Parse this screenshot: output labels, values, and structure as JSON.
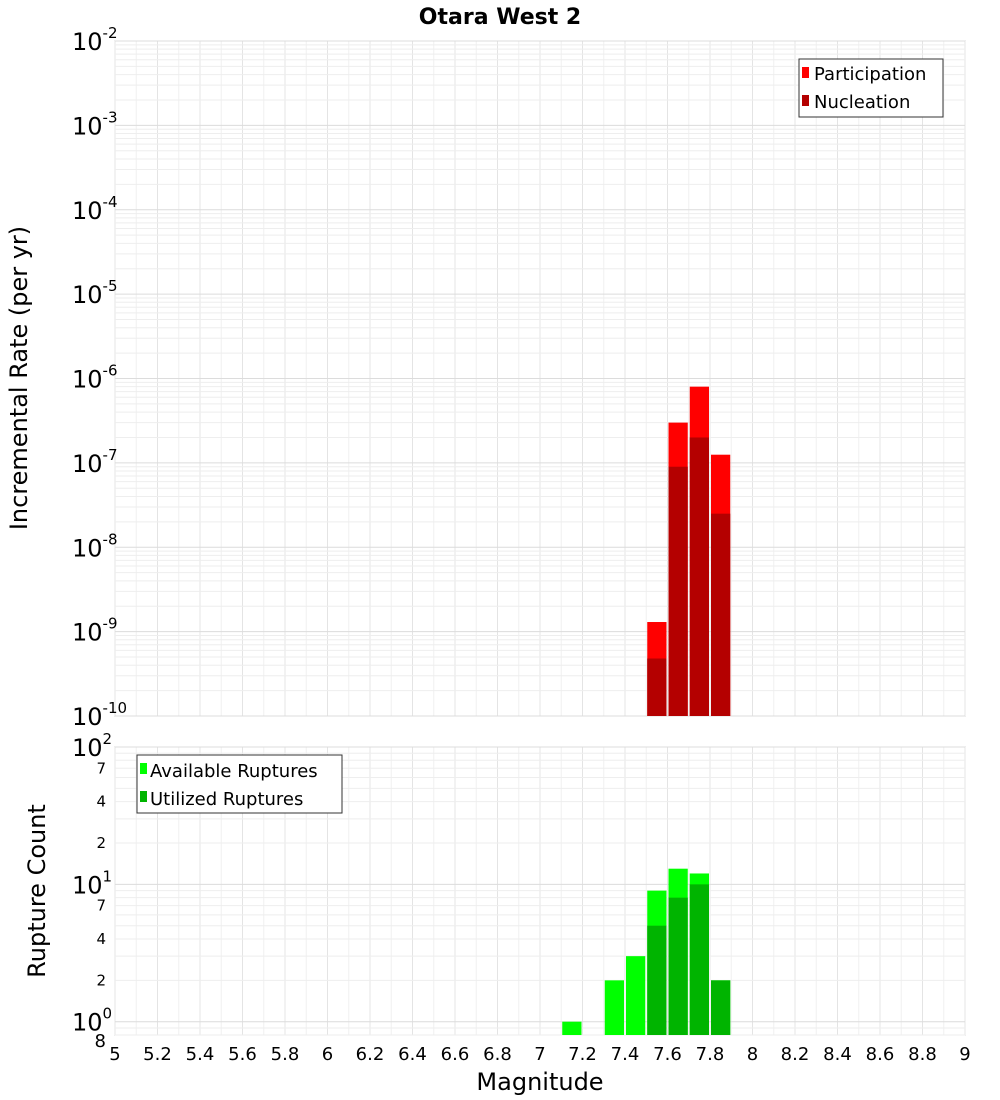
{
  "chart_data": {
    "title": "Otara West 2",
    "xlabel": "Magnitude",
    "xlim": [
      5,
      9
    ],
    "x_ticks": [
      "5",
      "5.2",
      "5.4",
      "5.6",
      "5.8",
      "6",
      "6.2",
      "6.4",
      "6.6",
      "6.8",
      "7",
      "7.2",
      "7.4",
      "7.6",
      "7.8",
      "8",
      "8.2",
      "8.4",
      "8.6",
      "8.8",
      "9"
    ],
    "panels": [
      {
        "type": "bar",
        "scale": "log",
        "ylabel": "Incremental Rate (per yr)",
        "ylim": [
          1e-10,
          0.01
        ],
        "y_ticks": [
          {
            "base": "10",
            "exp": "-2"
          },
          {
            "base": "10",
            "exp": "-3"
          },
          {
            "base": "10",
            "exp": "-4"
          },
          {
            "base": "10",
            "exp": "-5"
          },
          {
            "base": "10",
            "exp": "-6"
          },
          {
            "base": "10",
            "exp": "-7"
          },
          {
            "base": "10",
            "exp": "-8"
          },
          {
            "base": "10",
            "exp": "-9"
          },
          {
            "base": "10",
            "exp": "-10"
          }
        ],
        "bin_width": 0.1,
        "series": [
          {
            "name": "Participation",
            "color": "#ff0000",
            "x": [
              7.55,
              7.65,
              7.75,
              7.85
            ],
            "values": [
              1.3e-09,
              3e-07,
              8e-07,
              1.25e-07
            ]
          },
          {
            "name": "Nucleation",
            "color": "#b40000",
            "x": [
              7.55,
              7.65,
              7.75,
              7.85
            ],
            "values": [
              4.8e-10,
              9e-08,
              2e-07,
              2.5e-08
            ]
          }
        ],
        "legend": "top-right"
      },
      {
        "type": "bar",
        "scale": "log",
        "ylabel": "Rupture Count",
        "ylim": [
          0.8,
          100
        ],
        "y_ticks": [
          {
            "base": "10",
            "exp": "2"
          },
          {
            "base": "10",
            "exp": "1"
          },
          {
            "base": "10",
            "exp": "0"
          }
        ],
        "minor_ticks": [
          "7",
          "4",
          "2",
          "7",
          "4",
          "2",
          "8"
        ],
        "minor_values": [
          70,
          40,
          20,
          7,
          4,
          2,
          0.8
        ],
        "bin_width": 0.1,
        "series": [
          {
            "name": "Available Ruptures",
            "color": "#00ff00",
            "x": [
              7.15,
              7.35,
              7.45,
              7.55,
              7.65,
              7.75,
              7.85
            ],
            "values": [
              1,
              2,
              3,
              9,
              13,
              12,
              2
            ]
          },
          {
            "name": "Utilized Ruptures",
            "color": "#00b400",
            "x": [
              7.55,
              7.65,
              7.75,
              7.85
            ],
            "values": [
              5,
              8,
              10,
              2
            ]
          }
        ],
        "legend": "top-left"
      }
    ]
  }
}
